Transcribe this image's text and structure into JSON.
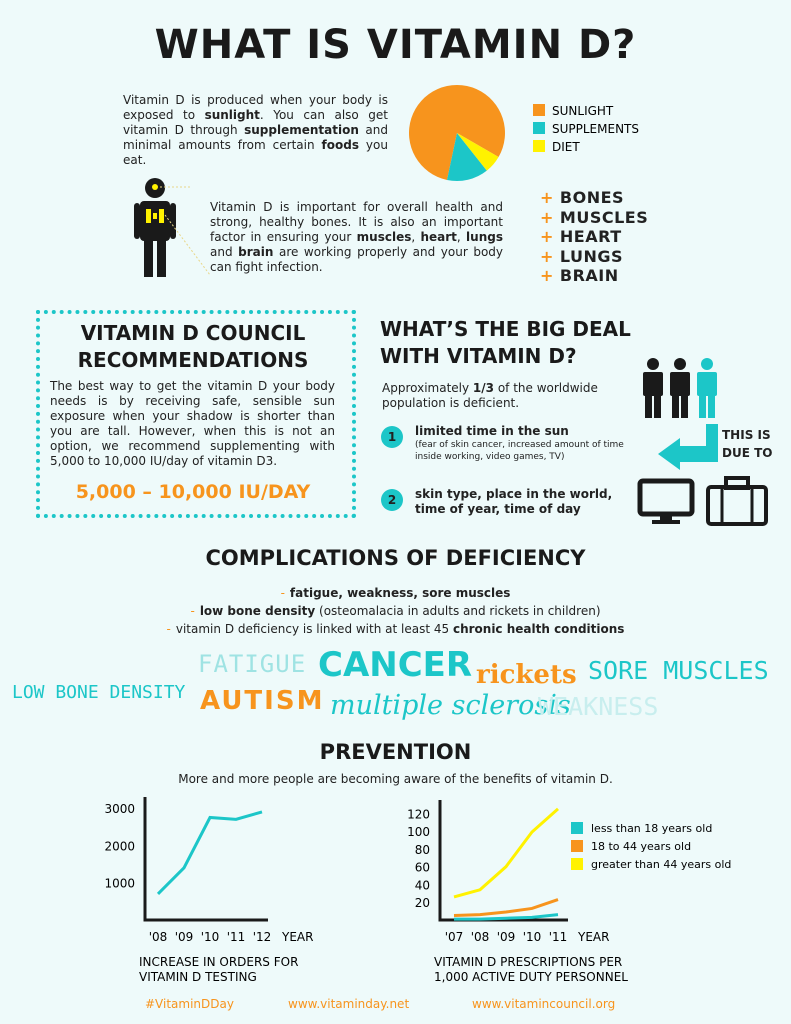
{
  "header": {
    "title": "WHAT IS VITAMIN D?"
  },
  "intro": [
    {
      "text": "Vitamin D is produced when your body is exposed to "
    },
    {
      "text": "sunlight",
      "bold": true
    },
    {
      "text": ". You can also get vitamin D through "
    },
    {
      "text": "supplementation",
      "bold": true
    },
    {
      "text": " and minimal amounts from certain "
    },
    {
      "text": "foods",
      "bold": true
    },
    {
      "text": " you eat."
    }
  ],
  "health": [
    {
      "text": "Vitamin D is important for overall health and strong, healthy bones. It is also an important factor in ensuring your "
    },
    {
      "text": "muscles",
      "bold": true
    },
    {
      "text": ", "
    },
    {
      "text": "heart",
      "bold": true
    },
    {
      "text": ", "
    },
    {
      "text": "lungs",
      "bold": true
    },
    {
      "text": " and "
    },
    {
      "text": "brain",
      "bold": true
    },
    {
      "text": " are working properly and your body can fight infection."
    }
  ],
  "body_parts": {
    "marker": "+",
    "items": [
      "BONES",
      "MUSCLES",
      "HEART",
      "LUNGS",
      "BRAIN"
    ]
  },
  "council": {
    "title": "VITAMIN D COUNCIL RECOMMENDATIONS",
    "body": "The best way to get the vitamin D your body needs is by receiving safe, sensible sun exposure when your shadow is shorter than you are tall. However, when this is not an option, we recommend supplementing with 5,000 to 10,000 IU/day of vitamin D3.",
    "highlight": "5,000 – 10,000 IU/DAY"
  },
  "big_deal": {
    "title": "WHAT’S THE BIG DEAL WITH VITAMIN D?",
    "text": [
      {
        "text": "Approximately "
      },
      {
        "text": "1/3",
        "bold": true
      },
      {
        "text": " of the worldwide population is deficient."
      }
    ],
    "due_to": "THIS IS DUE TO",
    "reasons": [
      {
        "number": "1",
        "title": "limited time in the sun",
        "detail": "(fear of skin cancer, increased amount of time inside working, video games, TV)"
      },
      {
        "number": "2",
        "title": "skin type, place in the world, time of year, time of day"
      }
    ]
  },
  "complications": {
    "title": "COMPLICATIONS OF DEFICIENCY",
    "marker": "-",
    "items": [
      [
        {
          "text": "fatigue, weakness, sore muscles",
          "bold": true
        }
      ],
      [
        {
          "text": "low bone density",
          "bold": true
        },
        {
          "text": " (osteomalacia in adults and rickets in children)"
        }
      ],
      [
        {
          "text": "vitamin D deficiency is linked with at least 45 "
        },
        {
          "text": "chronic health conditions",
          "bold": true
        }
      ]
    ]
  },
  "word_cloud": [
    "FATIGUE",
    "CANCER",
    "rickets",
    "SORE MUSCLES",
    "LOW BONE DENSITY",
    "AUTISM",
    "multiple sclerosis",
    "WEAKNESS"
  ],
  "prevention": {
    "title": "PREVENTION",
    "subtitle": "More and more people are becoming aware of the benefits of vitamin D."
  },
  "chart_data": [
    {
      "type": "pie",
      "categories": [
        "SUNLIGHT",
        "SUPPLEMENTS",
        "DIET"
      ],
      "values": [
        80,
        14,
        6
      ],
      "colors": [
        "#f7941d",
        "#1cc6c8",
        "#fff200"
      ]
    },
    {
      "type": "line",
      "title": "INCREASE IN ORDERS FOR VITAMIN D TESTING",
      "x_label": "YEAR",
      "categories": [
        "'08",
        "'09",
        "'10",
        "'11",
        "'12"
      ],
      "values": [
        700,
        1400,
        2750,
        2700,
        2900
      ],
      "color": "#1cc6c8",
      "ylim": [
        0,
        3300
      ],
      "yticks": [
        1000,
        2000,
        3000
      ]
    },
    {
      "type": "line",
      "title": "VITAMIN D PRESCRIPTIONS PER 1,000 ACTIVE DUTY PERSONNEL",
      "x_label": "YEAR",
      "categories": [
        "'07",
        "'08",
        "'09",
        "'10",
        "'11"
      ],
      "ylim": [
        0,
        135
      ],
      "yticks": [
        20,
        40,
        60,
        80,
        100,
        120
      ],
      "series": [
        {
          "name": "less than 18 years old",
          "color": "#1cc6c8",
          "values": [
            1,
            1,
            2,
            3,
            6
          ]
        },
        {
          "name": "18 to 44 years old",
          "color": "#f7941d",
          "values": [
            5,
            6,
            9,
            13,
            23
          ]
        },
        {
          "name": "greater than 44 years old",
          "color": "#fff200",
          "values": [
            26,
            34,
            60,
            99,
            125
          ]
        }
      ]
    }
  ],
  "footer": [
    "#VitaminDDay",
    "www.vitaminday.net",
    "www.vitamincouncil.org"
  ]
}
